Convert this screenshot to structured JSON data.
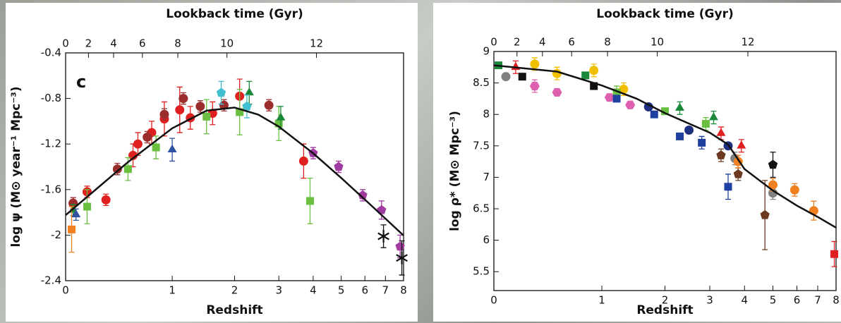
{
  "chart_data": [
    {
      "type": "scatter",
      "annotation": "c",
      "title_top": "Lookback time (Gyr)",
      "xlabel": "Redshift",
      "ylabel": "log ψ (M⊙ year⁻¹ Mpc⁻³)",
      "xscale": "log1p",
      "xlim": [
        0,
        8
      ],
      "xticks": [
        0,
        1,
        2,
        3,
        4,
        5,
        6,
        7,
        8
      ],
      "x2ticks": [
        0,
        2,
        4,
        6,
        8,
        10,
        12
      ],
      "ylim": [
        -2.4,
        -0.4
      ],
      "yticks": [
        -2.4,
        -2,
        -1.6,
        -1.2,
        -0.8,
        -0.4
      ],
      "curve": {
        "color": "#111111",
        "x": [
          0,
          0.5,
          1,
          1.5,
          2,
          2.5,
          3,
          4,
          5,
          6,
          7,
          8
        ],
        "values": [
          -1.825,
          -1.359,
          -1.062,
          -0.907,
          -0.88,
          -0.942,
          -1.047,
          -1.282,
          -1.498,
          -1.688,
          -1.855,
          -2.003
        ]
      },
      "series": [
        {
          "color": "#e02020",
          "marker": "circle",
          "x": [
            0.05,
            0.15,
            0.3,
            0.55,
            0.6,
            0.75,
            0.9,
            1.1,
            1.25,
            1.6,
            2.1,
            3.7
          ],
          "values": [
            -1.72,
            -1.62,
            -1.69,
            -1.3,
            -1.2,
            -1.1,
            -0.98,
            -0.9,
            -0.97,
            -0.93,
            -0.78,
            -1.35
          ],
          "yerr": [
            0.05,
            0.05,
            0.05,
            0.1,
            0.1,
            0.1,
            0.15,
            0.2,
            0.1,
            0.1,
            0.15,
            0.15
          ]
        },
        {
          "color": "#9b2d2d",
          "marker": "circle",
          "x": [
            0.05,
            0.4,
            0.7,
            0.9,
            1.15,
            1.4,
            1.8,
            2.75
          ],
          "values": [
            -1.72,
            -1.42,
            -1.14,
            -0.94,
            -0.8,
            -0.87,
            -0.86,
            -0.86
          ],
          "yerr": [
            0.05,
            0.05,
            0.05,
            0.05,
            0.05,
            0.05,
            0.05,
            0.05
          ]
        },
        {
          "color": "#6abf40",
          "marker": "square",
          "x": [
            0.15,
            0.5,
            0.8,
            1.5,
            2.1,
            3.0,
            3.9
          ],
          "values": [
            -1.75,
            -1.42,
            -1.23,
            -0.96,
            -0.92,
            -1.02,
            -1.7
          ],
          "yerr": [
            0.15,
            0.1,
            0.1,
            0.15,
            0.2,
            0.15,
            0.2
          ]
        },
        {
          "color": "#1a8a3a",
          "marker": "triangle",
          "x": [
            0.05,
            2.3,
            3.05
          ],
          "values": [
            -1.78,
            -0.75,
            -0.97
          ],
          "yerr": [
            0.05,
            0.1,
            0.1
          ]
        },
        {
          "color": "#3050a0",
          "marker": "triangle",
          "x": [
            0.07,
            1.0
          ],
          "values": [
            -1.82,
            -1.25
          ],
          "yerr": [
            0.05,
            0.1
          ]
        },
        {
          "color": "#40c0d0",
          "marker": "pentagon",
          "x": [
            1.75,
            2.25
          ],
          "values": [
            -0.75,
            -0.87
          ],
          "yerr": [
            0.1,
            0.1
          ]
        },
        {
          "color": "#a03ca0",
          "marker": "pentagon",
          "x": [
            4.0,
            4.9,
            5.9,
            6.8,
            7.8
          ],
          "values": [
            -1.28,
            -1.4,
            -1.65,
            -1.78,
            -2.1
          ],
          "yerr": [
            0.05,
            0.05,
            0.05,
            0.08,
            0.1
          ]
        },
        {
          "color": "#f08020",
          "marker": "square",
          "x": [
            0.04
          ],
          "values": [
            -1.95
          ],
          "yerr": [
            0.2
          ]
        },
        {
          "color": "#111111",
          "marker": "asterisk",
          "x": [
            6.9,
            7.9
          ],
          "values": [
            -2.01,
            -2.2
          ],
          "yerr": [
            0.1,
            0.15
          ]
        }
      ]
    },
    {
      "type": "scatter",
      "title_top": "Lookback time (Gyr)",
      "xlabel": "Redshift",
      "ylabel": "log ρ* (M⊙ Mpc⁻³)",
      "xscale": "log1p",
      "xlim": [
        0,
        8
      ],
      "xticks": [
        0,
        1,
        2,
        3,
        4,
        5,
        6,
        7,
        8
      ],
      "x2ticks": [
        0,
        2,
        4,
        6,
        8,
        10,
        12
      ],
      "ylim": [
        5.2,
        9
      ],
      "yticks": [
        5.5,
        6,
        6.5,
        7,
        7.5,
        8,
        8.5,
        9
      ],
      "curve": {
        "color": "#111111",
        "x": [
          0,
          0.5,
          1,
          1.5,
          2,
          3,
          3.5,
          4,
          5,
          6,
          7,
          8
        ],
        "values": [
          8.78,
          8.68,
          8.46,
          8.25,
          8.02,
          7.71,
          7.52,
          7.13,
          6.79,
          6.55,
          6.37,
          6.2
        ]
      },
      "series": [
        {
          "color": "#f0c000",
          "marker": "circle",
          "x": [
            0.3,
            0.5,
            0.9,
            1.3
          ],
          "values": [
            8.8,
            8.65,
            8.7,
            8.4
          ],
          "yerr": [
            0.1,
            0.1,
            0.1,
            0.1
          ]
        },
        {
          "color": "#1a8a3a",
          "marker": "square",
          "x": [
            0.03,
            0.8
          ],
          "values": [
            8.78,
            8.62
          ],
          "yerr": [
            0.05,
            0.05
          ]
        },
        {
          "color": "#6abf40",
          "marker": "square",
          "x": [
            1.2,
            2.0,
            2.9
          ],
          "values": [
            8.35,
            8.05,
            7.85
          ],
          "yerr": [
            0.1,
            0.05,
            0.1
          ]
        },
        {
          "color": "#1a8a3a",
          "marker": "triangle",
          "x": [
            2.3,
            3.1
          ],
          "values": [
            8.1,
            7.95
          ],
          "yerr": [
            0.1,
            0.1
          ]
        },
        {
          "color": "#808080",
          "marker": "circle",
          "x": [
            0.08,
            3.7,
            5.0
          ],
          "values": [
            8.6,
            7.3,
            6.75
          ],
          "yerr": [
            0.05,
            0.1,
            0.1
          ]
        },
        {
          "color": "#e060b0",
          "marker": "hexagon",
          "x": [
            0.3,
            0.5,
            1.1,
            1.4
          ],
          "values": [
            8.45,
            8.35,
            8.27,
            8.15
          ],
          "yerr": [
            0.1,
            0.05,
            0.05,
            0.05
          ]
        },
        {
          "color": "#111111",
          "marker": "square",
          "x": [
            0.2,
            0.9
          ],
          "values": [
            8.6,
            8.45
          ],
          "yerr": [
            0.03,
            0.03
          ]
        },
        {
          "color": "#2040a0",
          "marker": "square",
          "x": [
            1.2,
            1.8,
            2.3,
            2.8,
            3.5
          ],
          "values": [
            8.25,
            8.0,
            7.65,
            7.55,
            6.85
          ],
          "yerr": [
            0.05,
            0.05,
            0.05,
            0.1,
            0.2
          ]
        },
        {
          "color": "#203080",
          "marker": "circle",
          "x": [
            1.7,
            2.5,
            3.5
          ],
          "values": [
            8.12,
            7.75,
            7.5
          ],
          "yerr": [
            0.05,
            0.05,
            0.05
          ]
        },
        {
          "color": "#e02020",
          "marker": "triangle",
          "x": [
            0.15,
            3.3,
            3.9
          ],
          "values": [
            8.75,
            7.7,
            7.5
          ],
          "yerr": [
            0.1,
            0.1,
            0.1
          ]
        },
        {
          "color": "#6b3a20",
          "marker": "pentagon",
          "x": [
            3.3,
            3.8,
            4.7
          ],
          "values": [
            7.35,
            7.05,
            6.4
          ],
          "yerr": [
            0.1,
            0.1,
            0.55
          ]
        },
        {
          "color": "#f08020",
          "marker": "circle",
          "x": [
            3.8,
            5.0,
            5.9,
            6.8
          ],
          "values": [
            7.25,
            6.88,
            6.8,
            6.47
          ],
          "yerr": [
            0.1,
            0.1,
            0.1,
            0.15
          ]
        },
        {
          "color": "#111111",
          "marker": "pentagon",
          "x": [
            5.0
          ],
          "values": [
            7.2
          ],
          "yerr": [
            0.2
          ]
        },
        {
          "color": "#e02020",
          "marker": "square",
          "x": [
            7.9
          ],
          "values": [
            5.78
          ],
          "yerr": [
            0.2
          ]
        }
      ]
    }
  ]
}
